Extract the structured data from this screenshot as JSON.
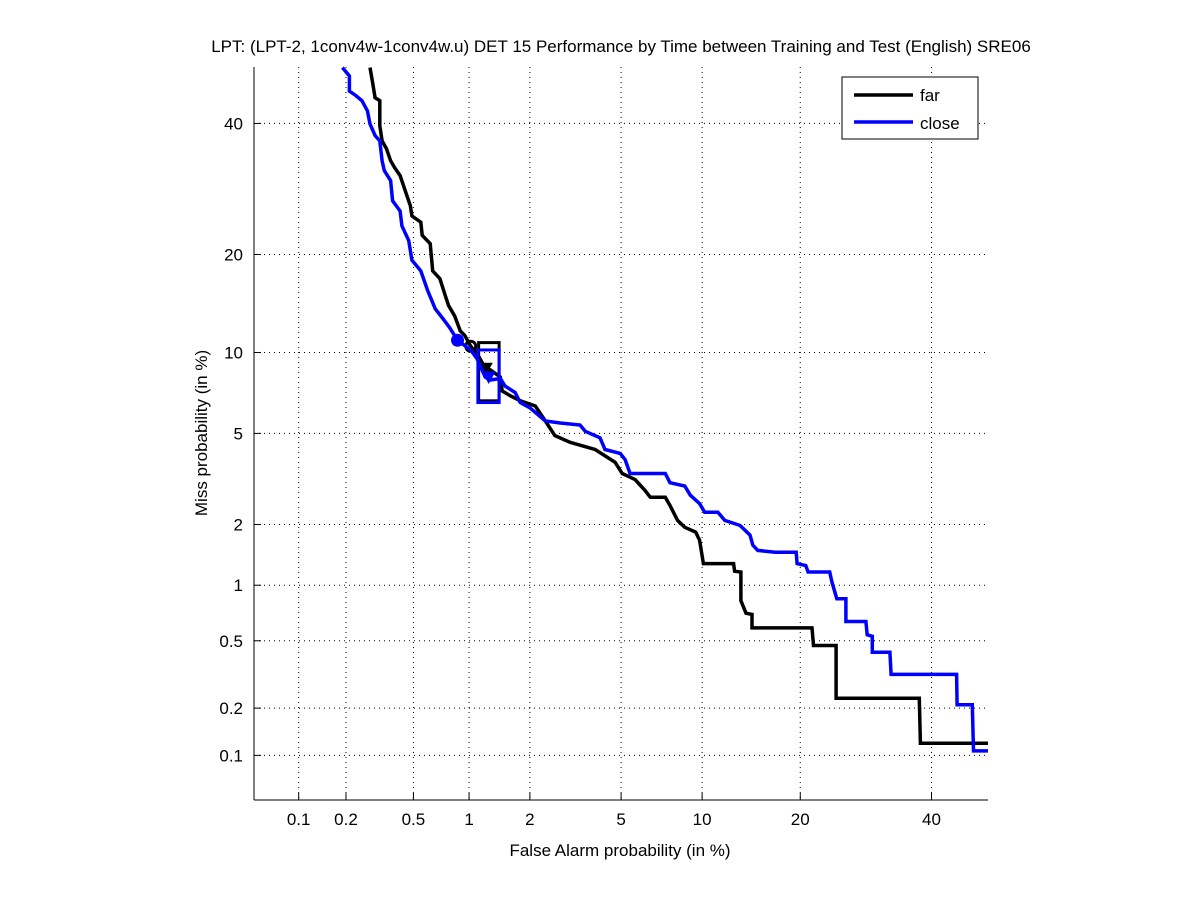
{
  "chart_data": {
    "type": "line",
    "title": "LPT: (LPT-2, 1conv4w-1conv4w.u) DET 15 Performance by Time between Training and Test (English) SRE06",
    "xlabel": "False Alarm probability (in %)",
    "ylabel": "Miss probability (in %)",
    "scale": "normal-deviate",
    "xlim": [
      0.05,
      50
    ],
    "ylim": [
      0.05,
      50
    ],
    "xticks": [
      0.1,
      0.2,
      0.5,
      1,
      2,
      5,
      10,
      20,
      40
    ],
    "xtick_labels": [
      "0.1",
      "0.2",
      "0.5",
      "1",
      "2",
      "5",
      "10",
      "20",
      "40"
    ],
    "yticks": [
      0.1,
      0.2,
      0.5,
      1,
      2,
      5,
      10,
      20,
      40
    ],
    "ytick_labels": [
      "0.1",
      "0.2",
      "0.5",
      "1",
      "2",
      "5",
      "10",
      "20",
      "40"
    ],
    "grid": true,
    "legend_position": "top-right",
    "series": [
      {
        "name": "far",
        "color": "#000000",
        "points": [
          [
            0.28,
            49.9
          ],
          [
            0.29,
            47.2
          ],
          [
            0.3,
            44.5
          ],
          [
            0.32,
            44.0
          ],
          [
            0.32,
            39.6
          ],
          [
            0.33,
            37.0
          ],
          [
            0.35,
            35.7
          ],
          [
            0.37,
            33.7
          ],
          [
            0.39,
            32.6
          ],
          [
            0.42,
            31.3
          ],
          [
            0.45,
            28.9
          ],
          [
            0.48,
            26.7
          ],
          [
            0.49,
            25.2
          ],
          [
            0.55,
            24.3
          ],
          [
            0.56,
            22.5
          ],
          [
            0.62,
            21.4
          ],
          [
            0.64,
            18.0
          ],
          [
            0.7,
            17.1
          ],
          [
            0.75,
            15.2
          ],
          [
            0.78,
            14.2
          ],
          [
            0.84,
            13.2
          ],
          [
            0.9,
            11.8
          ],
          [
            0.95,
            11.4
          ],
          [
            1.02,
            10.5
          ],
          [
            1.11,
            9.8
          ],
          [
            1.17,
            9.2
          ],
          [
            1.21,
            8.7
          ],
          [
            1.28,
            8.7
          ],
          [
            1.44,
            8.2
          ],
          [
            1.47,
            7.3
          ],
          [
            1.61,
            7.0
          ],
          [
            1.8,
            6.7
          ],
          [
            2.12,
            6.4
          ],
          [
            2.36,
            5.6
          ],
          [
            2.61,
            4.9
          ],
          [
            3.05,
            4.6
          ],
          [
            3.91,
            4.3
          ],
          [
            4.73,
            3.8
          ],
          [
            5.05,
            3.4
          ],
          [
            5.68,
            3.2
          ],
          [
            6.2,
            2.87
          ],
          [
            6.5,
            2.67
          ],
          [
            7.4,
            2.67
          ],
          [
            7.7,
            2.45
          ],
          [
            8.2,
            2.09
          ],
          [
            8.7,
            1.94
          ],
          [
            9.5,
            1.84
          ],
          [
            9.8,
            1.68
          ],
          [
            10.1,
            1.29
          ],
          [
            12.7,
            1.29
          ],
          [
            12.8,
            1.18
          ],
          [
            13.4,
            1.17
          ],
          [
            13.4,
            0.83
          ],
          [
            13.9,
            0.71
          ],
          [
            14.5,
            0.7
          ],
          [
            14.5,
            0.59
          ],
          [
            21.5,
            0.59
          ],
          [
            21.7,
            0.47
          ],
          [
            24.8,
            0.47
          ],
          [
            24.8,
            0.23
          ],
          [
            37.9,
            0.23
          ],
          [
            38.1,
            0.12
          ],
          [
            50.0,
            0.12
          ]
        ],
        "min_dcf_marker": [
          1.02,
          10.5
        ],
        "act_dcf_marker": [
          1.22,
          8.6
        ],
        "confidence_box": {
          "x": [
            1.12,
            1.42
          ],
          "y": [
            6.7,
            10.8
          ]
        }
      },
      {
        "name": "close",
        "color": "#0000ff",
        "points": [
          [
            0.19,
            49.9
          ],
          [
            0.21,
            48.4
          ],
          [
            0.21,
            45.7
          ],
          [
            0.23,
            44.9
          ],
          [
            0.25,
            44.0
          ],
          [
            0.27,
            42.2
          ],
          [
            0.28,
            39.9
          ],
          [
            0.3,
            37.9
          ],
          [
            0.32,
            37.0
          ],
          [
            0.33,
            33.7
          ],
          [
            0.34,
            32.1
          ],
          [
            0.37,
            30.5
          ],
          [
            0.38,
            27.4
          ],
          [
            0.42,
            25.9
          ],
          [
            0.43,
            23.8
          ],
          [
            0.47,
            21.8
          ],
          [
            0.49,
            19.3
          ],
          [
            0.55,
            18.0
          ],
          [
            0.6,
            15.8
          ],
          [
            0.66,
            13.9
          ],
          [
            0.73,
            12.9
          ],
          [
            0.79,
            12.1
          ],
          [
            0.87,
            11.0
          ],
          [
            1.02,
            10.2
          ],
          [
            1.1,
            9.5
          ],
          [
            1.21,
            8.2
          ],
          [
            1.28,
            8.0
          ],
          [
            1.44,
            8.1
          ],
          [
            1.52,
            7.6
          ],
          [
            1.7,
            7.2
          ],
          [
            1.8,
            6.6
          ],
          [
            2.0,
            6.3
          ],
          [
            2.36,
            5.6
          ],
          [
            2.76,
            5.5
          ],
          [
            3.37,
            5.4
          ],
          [
            3.55,
            5.1
          ],
          [
            4.1,
            4.8
          ],
          [
            4.3,
            4.3
          ],
          [
            4.96,
            4.14
          ],
          [
            5.19,
            3.9
          ],
          [
            5.43,
            3.4
          ],
          [
            7.4,
            3.4
          ],
          [
            7.7,
            3.1
          ],
          [
            8.7,
            3.0
          ],
          [
            9.1,
            2.73
          ],
          [
            9.8,
            2.5
          ],
          [
            10.2,
            2.28
          ],
          [
            11.3,
            2.28
          ],
          [
            11.9,
            2.09
          ],
          [
            13.3,
            1.98
          ],
          [
            13.8,
            1.88
          ],
          [
            14.3,
            1.78
          ],
          [
            14.6,
            1.59
          ],
          [
            15.1,
            1.5
          ],
          [
            17.0,
            1.47
          ],
          [
            19.5,
            1.47
          ],
          [
            19.6,
            1.29
          ],
          [
            20.7,
            1.26
          ],
          [
            21.0,
            1.17
          ],
          [
            23.9,
            1.17
          ],
          [
            24.2,
            1.04
          ],
          [
            24.9,
            0.85
          ],
          [
            26.2,
            0.85
          ],
          [
            26.2,
            0.64
          ],
          [
            29.2,
            0.64
          ],
          [
            29.4,
            0.54
          ],
          [
            30.2,
            0.53
          ],
          [
            30.2,
            0.43
          ],
          [
            33.0,
            0.43
          ],
          [
            33.2,
            0.32
          ],
          [
            44.4,
            0.32
          ],
          [
            44.5,
            0.21
          ],
          [
            47.2,
            0.21
          ],
          [
            47.4,
            0.107
          ],
          [
            50.0,
            0.107
          ]
        ],
        "min_dcf_marker": [
          0.87,
          11.0
        ],
        "act_dcf_marker": [
          1.26,
          8.0
        ],
        "confidence_box": {
          "x": [
            1.11,
            1.42
          ],
          "y": [
            6.6,
            10.2
          ]
        }
      }
    ]
  }
}
